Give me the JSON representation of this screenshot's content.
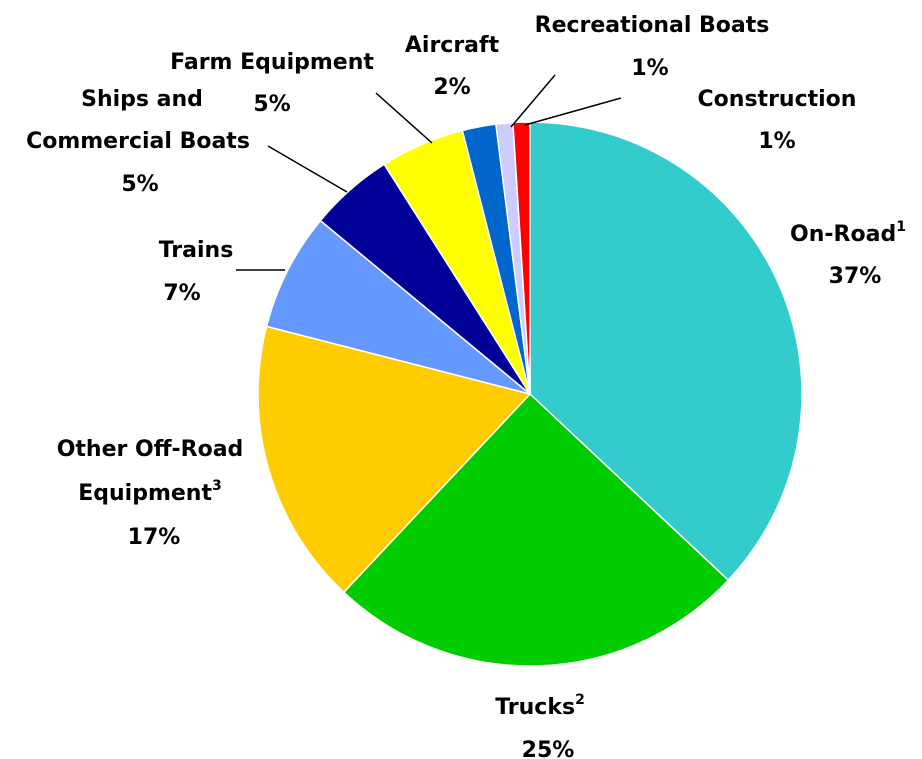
{
  "chart_data": {
    "type": "pie",
    "start_angle_deg": 0,
    "direction": "clockwise",
    "slices": [
      {
        "label": "On-Road",
        "sup": "1",
        "value": 37,
        "pct_label": "37%",
        "color": "#33CCCC"
      },
      {
        "label": "Trucks",
        "sup": "2",
        "value": 25,
        "pct_label": "25%",
        "color": "#00CC00"
      },
      {
        "label": "Other Off-Road Equipment",
        "line1": "Other Off-Road",
        "line2": "Equipment",
        "sup": "3",
        "value": 17,
        "pct_label": "17%",
        "color": "#FFCC00"
      },
      {
        "label": "Trains",
        "value": 7,
        "pct_label": "7%",
        "color": "#6699FF"
      },
      {
        "label": "Ships and Commercial Boats",
        "line1": "Ships and",
        "line2": "Commercial Boats",
        "value": 5,
        "pct_label": "5%",
        "color": "#000099"
      },
      {
        "label": "Farm Equipment",
        "value": 5,
        "pct_label": "5%",
        "color": "#FFFF00"
      },
      {
        "label": "Aircraft",
        "value": 2,
        "pct_label": "2%",
        "color": "#0066CC"
      },
      {
        "label": "Recreational Boats",
        "value": 1,
        "pct_label": "1%",
        "color": "#CCCCFF"
      },
      {
        "label": "Construction",
        "value": 1,
        "pct_label": "1%",
        "color": "#FF0000"
      }
    ]
  }
}
